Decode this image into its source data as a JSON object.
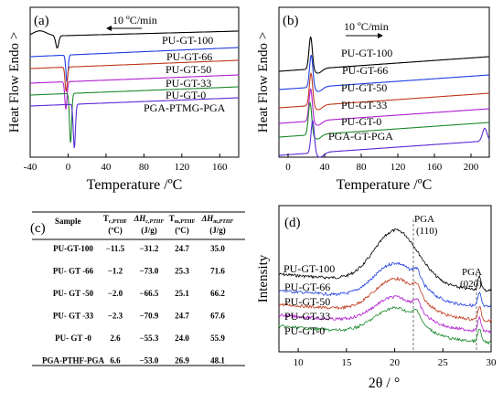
{
  "panel_a": {
    "label": "(a)",
    "rate": "10 ºC/min",
    "ylabel": "Heat Flow Endo >",
    "xlabel": "Temperature /ºC",
    "xticks": [
      "-40",
      "0",
      "40",
      "80",
      "120",
      "160"
    ]
  },
  "panel_b": {
    "label": "(b)",
    "rate": "10 ºC/min",
    "ylabel": "Heat Flow Endo >",
    "xlabel": "Temperature /ºC",
    "xticks": [
      "0",
      "40",
      "80",
      "120",
      "160",
      "200"
    ]
  },
  "panel_c": {
    "label": "(c)",
    "headers": [
      "Sample",
      "Tc,PTHF (ºC)",
      "ΔHc,PTHF (J/g)",
      "Tm,PTHF (ºC)",
      "ΔHm,PTHF (J/g)"
    ],
    "rows": [
      [
        "PU-GT-100",
        "−11.5",
        "−31.2",
        "24.7",
        "35.0"
      ],
      [
        "PU- GT -66",
        "−1.2",
        "−73.0",
        "25.3",
        "71.6"
      ],
      [
        "PU- GT -50",
        "−2.0",
        "−66.5",
        "25.1",
        "66.2"
      ],
      [
        "PU- GT -33",
        "−2.3",
        "−70.9",
        "24.7",
        "67.6"
      ],
      [
        "PU- GT -0",
        "2.6",
        "−55.3",
        "24.0",
        "55.9"
      ],
      [
        "PGA-PTHF-PGA",
        "6.6",
        "−53.0",
        "26.9",
        "48.1"
      ]
    ]
  },
  "panel_d": {
    "label": "(d)",
    "ylabel": "Intensity",
    "xlabel": "2θ / °",
    "xticks": [
      "10",
      "15",
      "20",
      "25",
      "30"
    ],
    "peak1": [
      "PGA",
      "(110)"
    ],
    "peak2": [
      "PGA",
      "(020)"
    ]
  },
  "colors": {
    "PU-GT-100": "#000000",
    "PU-GT-66": "#1f3fe0",
    "PU-GT-50": "#c0391b",
    "PU-GT-33": "#b01fd0",
    "PU-GT-0": "#1e8a2e",
    "PGA": "#5b2bd6"
  },
  "chart_data": [
    {
      "panel": "a",
      "type": "line",
      "title": "",
      "xlabel": "Temperature /ºC",
      "ylabel": "Heat Flow Endo >",
      "xlim": [
        -40,
        180
      ],
      "series": [
        {
          "name": "PU-GT-100",
          "peak_x": -11.5,
          "peak_depth": 0.45
        },
        {
          "name": "PU-GT-66",
          "peak_x": -1.2,
          "peak_depth": 1.0
        },
        {
          "name": "PU-GT-50",
          "peak_x": -2.0,
          "peak_depth": 0.9
        },
        {
          "name": "PU-GT-33",
          "peak_x": -2.3,
          "peak_depth": 1.0
        },
        {
          "name": "PU-GT-0",
          "peak_x": 2.6,
          "peak_depth": 1.8
        },
        {
          "name": "PGA-PTMG-PGA",
          "peak_x": 6.6,
          "peak_depth": 1.6
        }
      ]
    },
    {
      "panel": "b",
      "type": "line",
      "title": "",
      "xlabel": "Temperature /ºC",
      "ylabel": "Heat Flow Endo >",
      "xlim": [
        -10,
        220
      ],
      "series": [
        {
          "name": "PU-GT-100",
          "peak_x": 24.7
        },
        {
          "name": "PU-GT-66",
          "peak_x": 25.3
        },
        {
          "name": "PU-GT-50",
          "peak_x": 25.1
        },
        {
          "name": "PU-GT-33",
          "peak_x": 24.7
        },
        {
          "name": "PU-GT-0",
          "peak_x": 24.0
        },
        {
          "name": "PGA-GT-PGA",
          "peak_x": 26.9,
          "second_peak_x": 215
        }
      ]
    },
    {
      "panel": "d",
      "type": "line",
      "title": "",
      "xlabel": "2θ / °",
      "ylabel": "Intensity",
      "xlim": [
        8,
        30
      ],
      "series": [
        {
          "name": "PU-GT-100",
          "max_x": 20.2
        },
        {
          "name": "PU-GT-66",
          "max_x": 20.2
        },
        {
          "name": "PU-GT-50",
          "max_x": 20.2
        },
        {
          "name": "PU-GT-33",
          "max_x": 20.2
        },
        {
          "name": "PU-GT-0",
          "max_x": 20.2
        }
      ],
      "annotations": [
        {
          "x": 22.3,
          "text": "PGA (110)"
        },
        {
          "x": 28.8,
          "text": "PGA (020)"
        }
      ]
    }
  ]
}
